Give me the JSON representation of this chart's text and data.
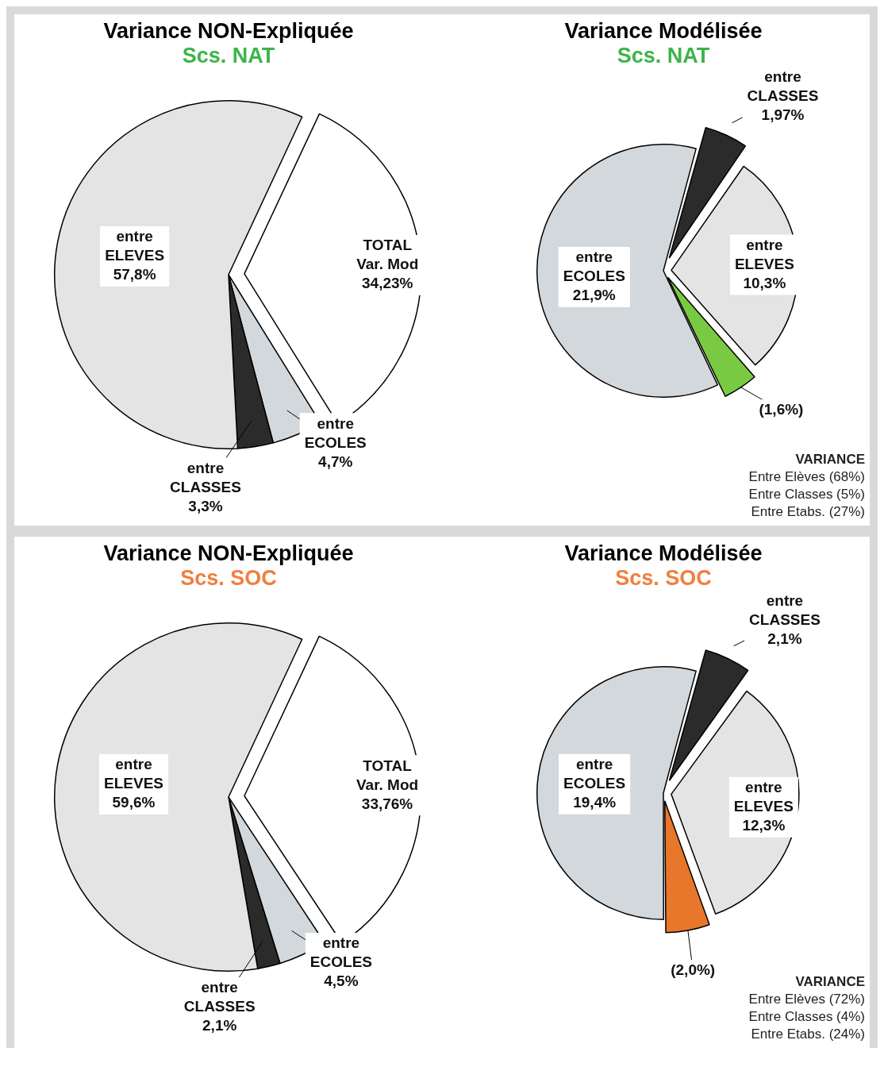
{
  "chart_data": [
    {
      "type": "pie",
      "title": "Variance NON-Expliquée",
      "subtitle": "Scs. NAT",
      "categories": [
        "TOTAL\nVar. Mod",
        "entre\nECOLES",
        "entre\nCLASSES",
        "entre\nELEVES"
      ],
      "values": [
        34.23,
        4.7,
        3.3,
        57.8
      ],
      "value_labels": [
        "34,23%",
        "4,7%",
        "3,3%",
        "57,8%"
      ],
      "colors": [
        "#ffffff",
        "#d3d8dc",
        "#2b2b2b",
        "#e4e4e4"
      ],
      "legend": false
    },
    {
      "type": "pie",
      "title": "Variance Modélisée",
      "subtitle": "Scs. NAT",
      "categories": [
        "entre\nCLASSES",
        "entre\nELEVES",
        null,
        "entre\nECOLES"
      ],
      "values": [
        1.97,
        10.3,
        1.6,
        21.9
      ],
      "value_labels": [
        "1,97%",
        "10,3%",
        "(1,6%)",
        "21,9%"
      ],
      "colors": [
        "#2b2b2b",
        "#e4e4e4",
        "#7ac943",
        "#d3d8dc"
      ],
      "legend": false,
      "annotations": [
        "VARIANCE",
        "Entre Elèves (68%)",
        "Entre Classes (5%)",
        "Entre Etabs. (27%)"
      ]
    },
    {
      "type": "pie",
      "title": "Variance NON-Expliquée",
      "subtitle": "Scs. SOC",
      "categories": [
        "TOTAL\nVar. Mod",
        "entre\nECOLES",
        "entre\nCLASSES",
        "entre\nELEVES"
      ],
      "values": [
        33.76,
        4.5,
        2.1,
        59.6
      ],
      "value_labels": [
        "33,76%",
        "4,5%",
        "2,1%",
        "59,6%"
      ],
      "colors": [
        "#ffffff",
        "#d3d8dc",
        "#2b2b2b",
        "#e4e4e4"
      ],
      "legend": false
    },
    {
      "type": "pie",
      "title": "Variance Modélisée",
      "subtitle": "Scs. SOC",
      "categories": [
        "entre\nCLASSES",
        "entre\nELEVES",
        null,
        "entre\nECOLES"
      ],
      "values": [
        2.1,
        12.3,
        2.0,
        19.4
      ],
      "value_labels": [
        "2,1%",
        "12,3%",
        "(2,0%)",
        "19,4%"
      ],
      "colors": [
        "#2b2b2b",
        "#e4e4e4",
        "#e8762b",
        "#d3d8dc"
      ],
      "legend": false,
      "annotations": [
        "VARIANCE",
        "Entre Elèves (72%)",
        "Entre Classes (4%)",
        "Entre Etabs. (24%)"
      ]
    }
  ]
}
